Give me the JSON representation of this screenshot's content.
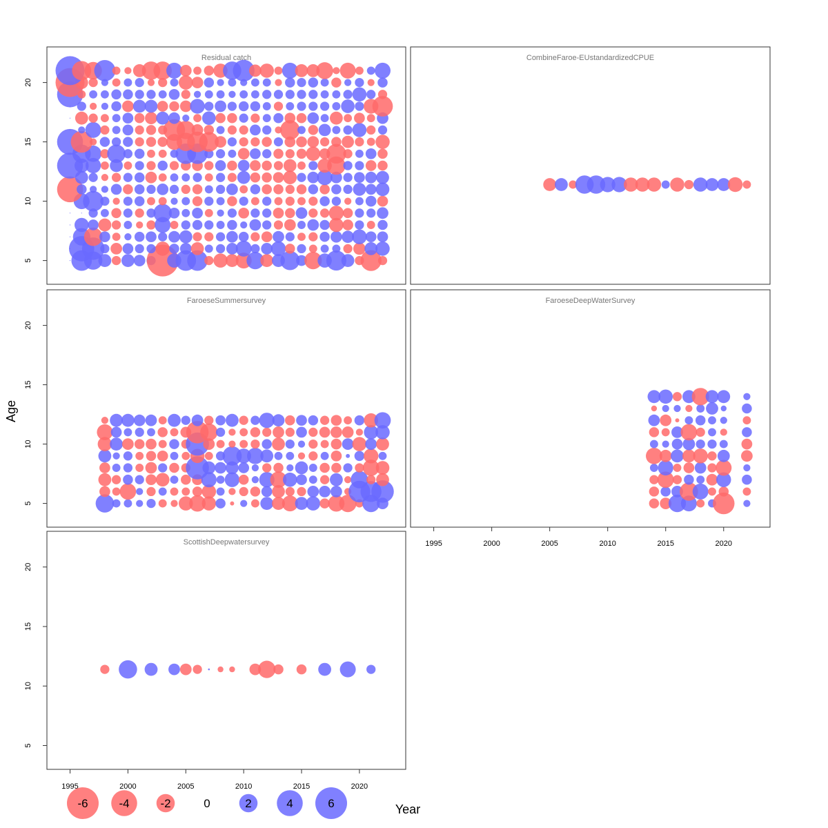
{
  "chart_data": {
    "type": "scatter",
    "subtype": "bubble-residual-panels",
    "x_label": "Year",
    "y_label": "Age",
    "xlim": [
      1993,
      2024
    ],
    "ylim": [
      3,
      23
    ],
    "x_ticks": [
      1995,
      2000,
      2005,
      2010,
      2015,
      2020
    ],
    "y_ticks": [
      5,
      10,
      15,
      20
    ],
    "colors": {
      "negative": "#ff6a6a",
      "positive": "#6a6aff",
      "neg_label": "#7a0000",
      "pos_label": "#0000aa"
    },
    "legend": {
      "values": [
        -6,
        -4,
        -2,
        0,
        2,
        4,
        6
      ],
      "labels": [
        "-6",
        "-4",
        "-2",
        "0",
        "2",
        "4",
        "6"
      ]
    },
    "panels": [
      {
        "title": "Residual catch",
        "years": [
          1995,
          1996,
          1997,
          1998,
          1999,
          2000,
          2001,
          2002,
          2003,
          2004,
          2005,
          2006,
          2007,
          2008,
          2009,
          2010,
          2011,
          2012,
          2013,
          2014,
          2015,
          2016,
          2017,
          2018,
          2019,
          2020,
          2021,
          2022
        ],
        "ages": [
          5,
          6,
          7,
          8,
          9,
          10,
          11,
          12,
          13,
          14,
          15,
          16,
          17,
          18,
          19,
          20,
          21
        ],
        "residuals": [
          [
            0,
            2.5,
            2,
            1,
            -0.5,
            1,
            0.8,
            0.5,
            -6,
            1.2,
            2.5,
            2.5,
            -0.5,
            -1.2,
            -1,
            -1.5,
            1.8,
            -1,
            1,
            2.2,
            0.7,
            -1.8,
            1.2,
            2.4,
            1,
            -0.5,
            -2.6,
            -0.5
          ],
          [
            0,
            3.8,
            3,
            0.5,
            -0.8,
            0.7,
            0.5,
            0.5,
            -1.2,
            0.6,
            0.8,
            -1,
            0.4,
            0.5,
            0.8,
            1.5,
            0.5,
            0.8,
            1.3,
            -0.6,
            0.5,
            -0.4,
            0.4,
            0.4,
            -0.5,
            -0.9,
            1,
            1.2
          ],
          [
            0,
            1.8,
            -2,
            0.7,
            -0.4,
            0.3,
            0.6,
            0.7,
            0.5,
            0.8,
            1,
            -0.5,
            -0.5,
            0.5,
            0.8,
            0.6,
            -0.5,
            -0.7,
            0.8,
            0.5,
            -0.4,
            -0.5,
            0.6,
            0.8,
            0.9,
            1.3,
            0.7,
            0.7
          ],
          [
            0,
            1.2,
            0.7,
            -1,
            -0.5,
            0.4,
            -0.3,
            -0.5,
            1.5,
            -0.4,
            0.5,
            0.6,
            0.5,
            0.4,
            0.6,
            0.3,
            0.8,
            0.5,
            -0.5,
            -0.8,
            0.4,
            0.8,
            0.6,
            -1.2,
            -0.7,
            0.5,
            -0.4,
            0.6
          ],
          [
            0,
            0,
            0.5,
            0.4,
            -0.6,
            0.5,
            -0.5,
            0.5,
            2,
            0.7,
            0.4,
            0.7,
            -0.4,
            0.3,
            0.5,
            -0.7,
            0.5,
            0.5,
            -0.7,
            -0.6,
            0.8,
            -0.5,
            -0.5,
            -1.3,
            -0.6,
            0.5,
            0.5,
            0.8
          ],
          [
            0,
            1.5,
            2.5,
            0.5,
            -0.3,
            0.5,
            0.6,
            -0.4,
            -0.4,
            0.3,
            0.4,
            -0.6,
            0.5,
            0.4,
            -0.6,
            0.5,
            -0.4,
            0.5,
            -0.4,
            -0.5,
            -0.4,
            -0.5,
            0.6,
            0.5,
            -0.3,
            0.4,
            0.7,
            -0.7
          ],
          [
            -4,
            0.6,
            0.3,
            0.3,
            0.7,
            -0.6,
            0.6,
            0.5,
            0.8,
            0.5,
            -0.5,
            -0.6,
            0.4,
            0.5,
            0.8,
            -0.4,
            0.6,
            -0.6,
            -0.6,
            -0.5,
            -0.6,
            0.6,
            -0.6,
            0.6,
            0.5,
            1,
            0.7,
            1.1
          ],
          [
            0,
            1,
            0.5,
            -0.3,
            -0.5,
            0.5,
            0.6,
            -0.8,
            -0.4,
            0.4,
            0.4,
            0.5,
            -0.4,
            0.5,
            -0.5,
            1,
            -0.6,
            -0.6,
            -0.7,
            -1.1,
            0.5,
            0.8,
            1.4,
            0.8,
            0.5,
            0.7,
            0.8,
            1
          ],
          [
            4,
            1.2,
            1.4,
            -0.4,
            1,
            -0.4,
            0.5,
            -0.5,
            0.6,
            -0.5,
            -0.6,
            -0.7,
            -0.5,
            0.7,
            -0.6,
            0.8,
            -0.7,
            -0.6,
            -0.5,
            -1,
            -0.4,
            0.5,
            -1.2,
            -2,
            0.5,
            0.5,
            -0.7,
            -0.6
          ],
          [
            0,
            2,
            1.6,
            -0.5,
            2,
            0.5,
            0.6,
            -0.4,
            -0.4,
            0.4,
            2.5,
            2.5,
            0.5,
            0.5,
            0.4,
            -0.8,
            0.7,
            0.5,
            -0.6,
            -0.5,
            -0.6,
            -1.2,
            -0.7,
            -2.3,
            -0.5,
            0.4,
            0.7,
            -0.6
          ],
          [
            4,
            -2.8,
            -0.3,
            0.6,
            0.5,
            0.6,
            -0.5,
            -0.6,
            -0.6,
            -1.5,
            -2,
            -2.5,
            -2.3,
            -0.8,
            0.5,
            -0.5,
            -0.5,
            -0.6,
            0.5,
            -0.7,
            -0.7,
            -0.8,
            -0.5,
            -0.6,
            -0.9,
            -0.5,
            -0.4,
            -1.2
          ],
          [
            0,
            0.3,
            1.5,
            -0.5,
            0.4,
            0.7,
            -0.5,
            -0.6,
            -0.5,
            -2.8,
            -2,
            -0.8,
            -0.6,
            0.4,
            -0.5,
            -0.5,
            0.7,
            0.5,
            -0.3,
            -2.3,
            0.4,
            -0.6,
            0.9,
            0.4,
            0.5,
            1.2,
            -0.5,
            0.5
          ],
          [
            0,
            -1,
            -0.5,
            -0.4,
            0.4,
            0.7,
            -0.6,
            -0.9,
            1,
            0.8,
            0.3,
            -0.4,
            1.1,
            -0.6,
            -0.6,
            0.5,
            -0.5,
            0.4,
            0.6,
            -0.7,
            -0.6,
            0.8,
            0.4,
            -1,
            -0.4,
            -0.7,
            -0.4,
            0.8
          ],
          [
            0,
            0.5,
            -0.3,
            0.3,
            0.6,
            -0.8,
            1,
            1,
            -0.7,
            -0.6,
            -0.8,
            1.3,
            0.5,
            0.8,
            0.5,
            0.6,
            0.6,
            0.4,
            -0.5,
            0.4,
            0.5,
            0.5,
            0.5,
            0.4,
            1.1,
            0.5,
            -1.3,
            -2.5
          ],
          [
            4,
            -0.4,
            0.4,
            0.4,
            0.6,
            0.6,
            0.5,
            0.5,
            0.4,
            0.7,
            -0.5,
            0.3,
            0.4,
            0.4,
            0.3,
            0.4,
            0.4,
            0.5,
            0.5,
            0.5,
            0.5,
            0.5,
            0.4,
            0.4,
            0.5,
            1.2,
            0.5,
            -0.5
          ],
          [
            -5,
            -1,
            -0.5,
            0.3,
            -0.4,
            0.4,
            0.5,
            -0.3,
            -0.5,
            0.4,
            -1.2,
            -0.8,
            0.6,
            0.3,
            0.4,
            0.3,
            0.4,
            0.4,
            -0.3,
            0.6,
            0.5,
            0.6,
            0.4,
            -0.6,
            0.3,
            0.5,
            -0.3,
            0.6
          ],
          [
            5,
            -2.2,
            -1.8,
            2.7,
            -0.4,
            -0.3,
            -1,
            -2,
            -2,
            1.5,
            -0.8,
            -0.4,
            -0.6,
            -1.2,
            2,
            2.8,
            -0.9,
            -1.2,
            -0.4,
            1.5,
            -1,
            -1,
            -1.7,
            -0.3,
            -1.5,
            -0.4,
            0.4,
            1.5
          ]
        ]
      },
      {
        "title": "CombineFaroe-EUstandardizedCPUE",
        "years": [
          2005,
          2006,
          2007,
          2008,
          2009,
          2010,
          2011,
          2012,
          2013,
          2014,
          2015,
          2016,
          2017,
          2018,
          2019,
          2020,
          2021,
          2022
        ],
        "ages": [
          11.4
        ],
        "residuals": [
          [
            -1,
            1,
            -0.4,
            2,
            2,
            1.4,
            1.4,
            -1.2,
            -1.2,
            -1.2,
            0.4,
            -1.2,
            -0.5,
            1.2,
            1,
            1,
            -1.3,
            -0.4
          ]
        ]
      },
      {
        "title": "FaroeseSummersurvey",
        "years": [
          1998,
          1999,
          2000,
          2001,
          2002,
          2003,
          2004,
          2005,
          2006,
          2007,
          2008,
          2009,
          2010,
          2011,
          2012,
          2013,
          2014,
          2015,
          2016,
          2017,
          2018,
          2019,
          2020,
          2021,
          2022
        ],
        "ages": [
          5,
          6,
          7,
          8,
          9,
          10,
          11,
          12
        ],
        "residuals": [
          [
            2,
            0.4,
            0.4,
            0.3,
            0.5,
            -0.4,
            -0.3,
            -1.2,
            -1.6,
            -1.2,
            0.6,
            -0.1,
            0.3,
            -0.4,
            1,
            -1,
            -1.5,
            1,
            1.2,
            -0.6,
            -1.6,
            -1.8,
            -0.4,
            1.8,
            0.8
          ],
          [
            -0.7,
            -0.4,
            -1.6,
            0.3,
            -0.5,
            0.4,
            -0.4,
            -0.4,
            -0.6,
            -1.2,
            0.4,
            -0.3,
            -0.5,
            -0.6,
            0.7,
            -1,
            -0.5,
            -0.5,
            0.8,
            0.8,
            0.8,
            -0.3,
            2.8,
            2.6,
            3
          ],
          [
            -1,
            -0.5,
            0.6,
            0.5,
            -0.7,
            -1.1,
            0.4,
            -0.6,
            -0.7,
            1.4,
            0.4,
            1.3,
            -0.6,
            0.3,
            1.4,
            -1.6,
            1.2,
            0.7,
            0.4,
            -0.5,
            1,
            -0.3,
            1.8,
            -0.5,
            -1
          ],
          [
            -0.7,
            0.4,
            0.5,
            -0.4,
            -0.8,
            0.5,
            -0.6,
            -0.5,
            3.2,
            1,
            0.8,
            1,
            0.7,
            0.3,
            -0.5,
            -0.6,
            0.3,
            1,
            0.4,
            -0.6,
            -0.6,
            0.5,
            -0.5,
            -1.6,
            -1.1
          ],
          [
            1,
            0.3,
            0.5,
            -0.4,
            -0.6,
            -0.7,
            0.4,
            -0.4,
            -1.2,
            -0.4,
            0.5,
            2.2,
            1.3,
            1.6,
            1,
            0.4,
            0.4,
            -0.3,
            -0.5,
            0.4,
            -0.7,
            0.1,
            0.6,
            -1.3,
            0.4
          ],
          [
            -1.2,
            1,
            -0.8,
            -0.6,
            -0.7,
            -0.4,
            0.6,
            -0.5,
            3.2,
            -0.8,
            -0.4,
            -0.3,
            -0.4,
            -0.5,
            0.6,
            -1,
            0.5,
            0.3,
            -0.5,
            -0.4,
            -0.7,
            0.8,
            -1.2,
            0.8,
            -1
          ],
          [
            -1.5,
            0.7,
            0.4,
            0.5,
            0.4,
            -0.6,
            -0.4,
            -0.7,
            -3,
            -1.8,
            0.5,
            -0.3,
            -0.4,
            -0.6,
            -0.5,
            -0.8,
            -0.5,
            0.7,
            -0.5,
            -0.7,
            -0.8,
            -0.8,
            -0.3,
            1.2,
            1.2
          ],
          [
            -0.3,
            1,
            1,
            0.8,
            0.8,
            -0.4,
            1,
            0.5,
            0.8,
            -0.5,
            0.6,
            1,
            -0.5,
            0.5,
            1.4,
            0.9,
            -0.6,
            0.7,
            0.6,
            -0.5,
            -0.7,
            -0.4,
            0.6,
            -1.2,
            1.6
          ]
        ]
      },
      {
        "title": "FaroeseDeepWaterSurvey",
        "years": [
          2014,
          2015,
          2016,
          2017,
          2018,
          2019,
          2020,
          2022
        ],
        "ages": [
          5,
          6,
          7,
          8,
          9,
          10,
          11,
          12,
          13,
          14
        ],
        "residuals": [
          [
            -0.6,
            -0.8,
            1.8,
            1.5,
            -0.4,
            0.4,
            -2.8,
            0.3
          ],
          [
            -0.6,
            0.6,
            0.8,
            -2,
            1.5,
            -0.4,
            -0.6,
            -0.4
          ],
          [
            -0.5,
            -1.6,
            -0.5,
            0.6,
            0.4,
            -0.8,
            1.3,
            0.6
          ],
          [
            0.4,
            1.4,
            -0.4,
            -0.7,
            0.8,
            -0.5,
            -1.5,
            0.3
          ],
          [
            -1.6,
            -0.9,
            1,
            -1,
            -1.3,
            -0.5,
            0.9,
            -0.8
          ],
          [
            0.4,
            0.3,
            0.7,
            0.9,
            0.5,
            0.5,
            0.4,
            -0.7
          ],
          [
            -0.6,
            -0.4,
            0.8,
            -1.6,
            -0.5,
            0.4,
            -0.3,
            0.6
          ],
          [
            0.8,
            -0.8,
            -0.1,
            0.4,
            0.6,
            0.4,
            0.3,
            -0.4
          ],
          [
            -0.2,
            0.3,
            0.3,
            -0.3,
            0.4,
            0.9,
            0.2,
            0.6
          ],
          [
            1,
            1.2,
            -0.5,
            1,
            -1.8,
            1,
            1,
            0.3
          ]
        ]
      },
      {
        "title": "ScottishDeepwatersurvey",
        "years": [
          1998,
          2000,
          2002,
          2004,
          2005,
          2006,
          2007,
          2008,
          2009,
          2011,
          2012,
          2013,
          2015,
          2017,
          2019,
          2021
        ],
        "ages": [
          11.4
        ],
        "residuals": [
          [
            -0.5,
            2,
            1,
            0.8,
            -0.8,
            -0.5,
            0.02,
            -0.2,
            -0.2,
            -0.8,
            -1.8,
            -0.6,
            -0.6,
            1,
            1.5,
            0.5
          ]
        ]
      }
    ]
  }
}
